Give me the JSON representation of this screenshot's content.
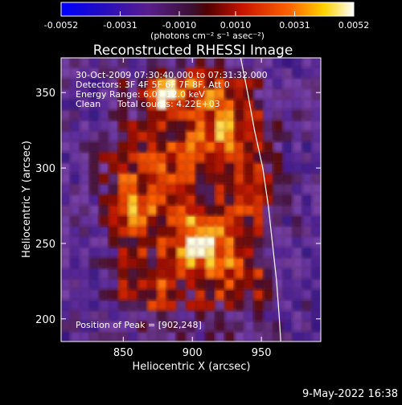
{
  "chart_data": {
    "type": "heatmap",
    "title": "Reconstructed RHESSI Image",
    "xlabel": "Heliocentric X (arcsec)",
    "ylabel": "Heliocentric Y (arcsec)",
    "xlim": [
      805,
      993
    ],
    "ylim": [
      185,
      373
    ],
    "x_ticks": [
      850,
      900,
      950
    ],
    "y_ticks": [
      200,
      250,
      300,
      350
    ],
    "colorbar": {
      "range": [
        -0.0052,
        0.0052
      ],
      "tick_values": [
        -0.0052,
        -0.0031,
        -0.001,
        0.001,
        0.0031,
        0.0052
      ],
      "tick_labels": [
        "-0.0052",
        "-0.0031",
        "-0.0010",
        "0.0010",
        "0.0031",
        "0.0052"
      ],
      "unit_label": "(photons cm⁻² s⁻¹ asec⁻²)"
    },
    "annotations": {
      "time_range": "30-Oct-2009 07:30:40.000 to 07:31:32.000",
      "detectors": "Detectors: 3F 4F 5F 6F 7F 8F, Att 0",
      "energy_range": "Energy Range: 6.0 - 12.0 keV",
      "clean": "Clean",
      "total_counts": "Total counts: 4.22E+03",
      "peak": "Position of Peak = [902,248]"
    },
    "peak_position": [
      902,
      248
    ],
    "limb_curve": [
      [
        935,
        373
      ],
      [
        940,
        350
      ],
      [
        945,
        325
      ],
      [
        951,
        300
      ],
      [
        955,
        275
      ],
      [
        958,
        250
      ],
      [
        961,
        225
      ],
      [
        963,
        200
      ],
      [
        964,
        185
      ]
    ]
  },
  "footer": {
    "date": "9-May-2022 16:38"
  }
}
